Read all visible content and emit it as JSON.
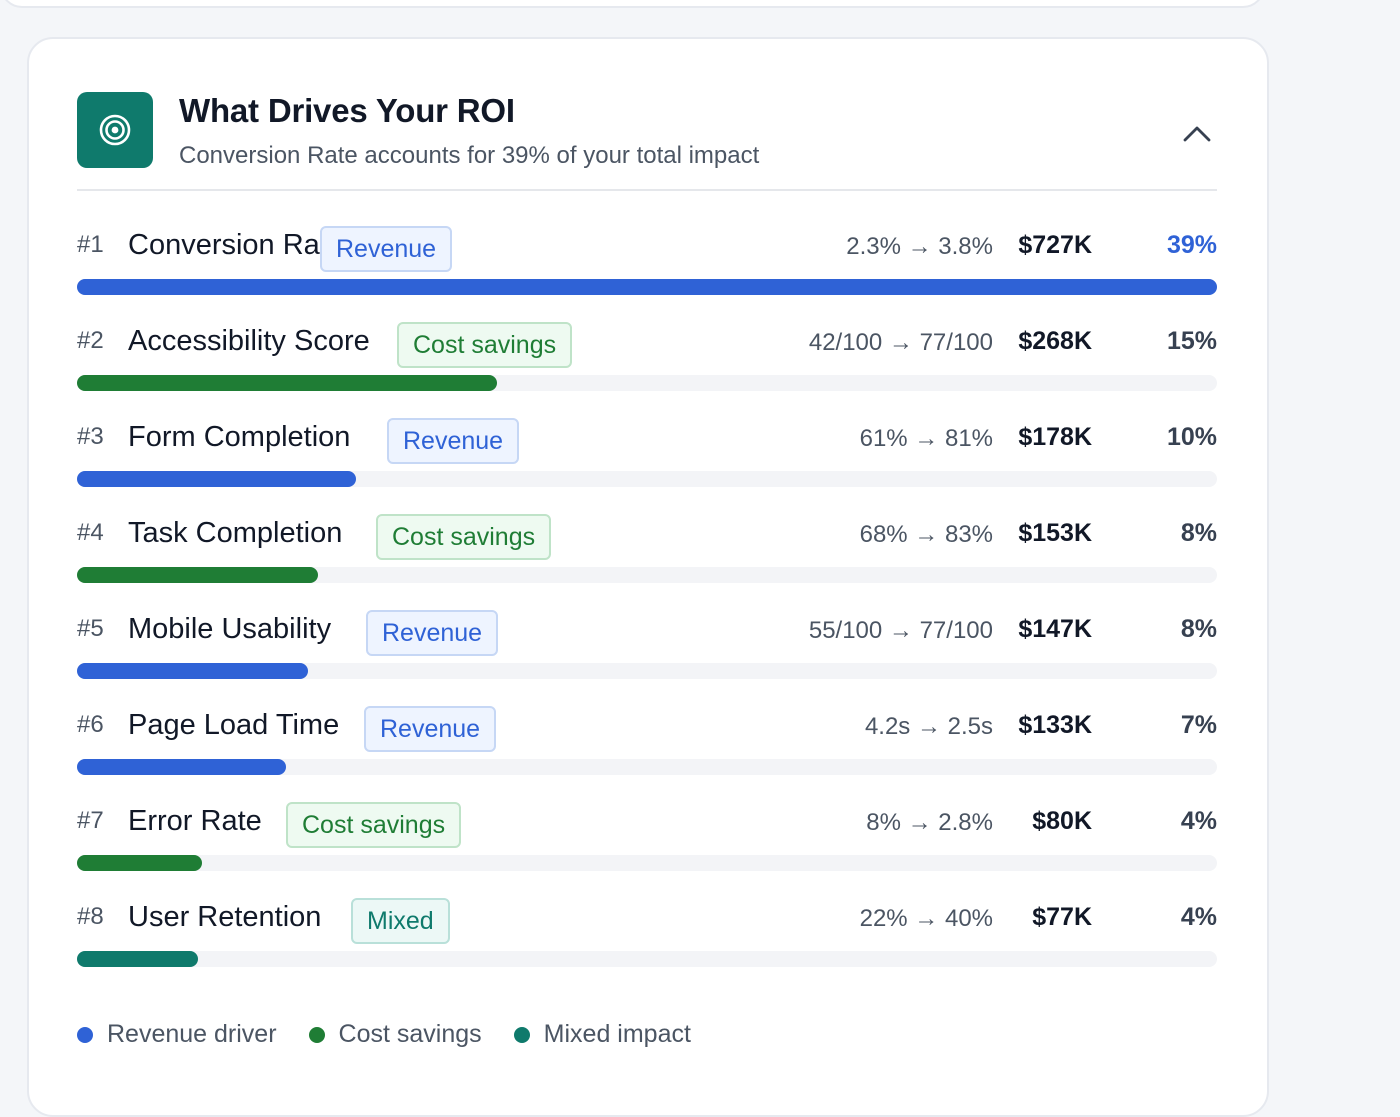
{
  "header": {
    "title": "What Drives Your ROI",
    "subtitle": "Conversion Rate accounts for 39% of your total impact",
    "icon": "target-icon",
    "collapse_icon": "chevron-up-icon"
  },
  "colors": {
    "revenue": "#2f62d6",
    "cost_savings": "#1f7d35",
    "mixed": "#0f7a6c",
    "icon_bg": "#0f7a6c"
  },
  "drivers": [
    {
      "rank": "#1",
      "name": "Conversion Rate",
      "tag": "Revenue",
      "type": "revenue",
      "change": "2.3% → 3.8%",
      "amount": "$727K",
      "pct": "39%",
      "share": 1.0
    },
    {
      "rank": "#2",
      "name": "Accessibility Score",
      "tag": "Cost savings",
      "type": "cost",
      "change": "42/100 → 77/100",
      "amount": "$268K",
      "pct": "15%",
      "share": 0.368
    },
    {
      "rank": "#3",
      "name": "Form Completion",
      "tag": "Revenue",
      "type": "revenue",
      "change": "61% → 81%",
      "amount": "$178K",
      "pct": "10%",
      "share": 0.245
    },
    {
      "rank": "#4",
      "name": "Task Completion",
      "tag": "Cost savings",
      "type": "cost",
      "change": "68% → 83%",
      "amount": "$153K",
      "pct": "8%",
      "share": 0.211
    },
    {
      "rank": "#5",
      "name": "Mobile Usability",
      "tag": "Revenue",
      "type": "revenue",
      "change": "55/100 → 77/100",
      "amount": "$147K",
      "pct": "8%",
      "share": 0.203
    },
    {
      "rank": "#6",
      "name": "Page Load Time",
      "tag": "Revenue",
      "type": "revenue",
      "change": "4.2s → 2.5s",
      "amount": "$133K",
      "pct": "7%",
      "share": 0.183
    },
    {
      "rank": "#7",
      "name": "Error Rate",
      "tag": "Cost savings",
      "type": "cost",
      "change": "8% → 2.8%",
      "amount": "$80K",
      "pct": "4%",
      "share": 0.11
    },
    {
      "rank": "#8",
      "name": "User Retention",
      "tag": "Mixed",
      "type": "mixed",
      "change": "22% → 40%",
      "amount": "$77K",
      "pct": "4%",
      "share": 0.106
    }
  ],
  "legend": [
    {
      "label": "Revenue driver",
      "type": "revenue"
    },
    {
      "label": "Cost savings",
      "type": "cost"
    },
    {
      "label": "Mixed impact",
      "type": "mixed"
    }
  ]
}
